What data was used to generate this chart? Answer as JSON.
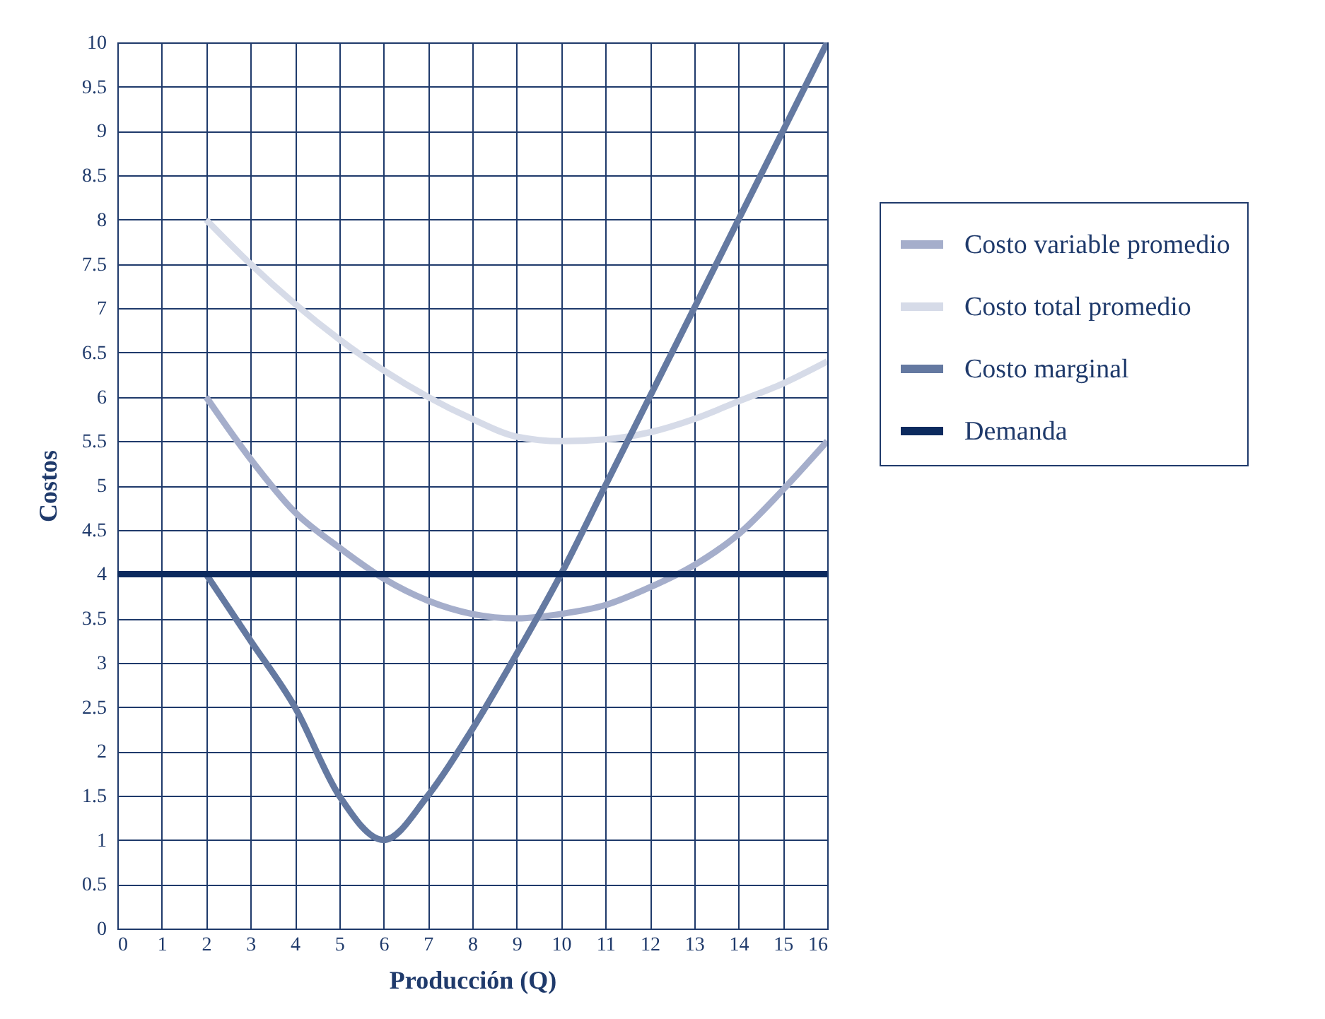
{
  "chart_data": {
    "type": "line",
    "xlabel": "Producción (Q)",
    "ylabel": "Costos",
    "xlim": [
      0,
      16
    ],
    "xticks": [
      0,
      1,
      2,
      3,
      4,
      5,
      6,
      7,
      8,
      9,
      10,
      11,
      12,
      13,
      14,
      15,
      16
    ],
    "ylim": [
      0,
      10
    ],
    "yticks": [
      0,
      0.5,
      1,
      1.5,
      2,
      2.5,
      3,
      3.5,
      4,
      4.5,
      5,
      5.5,
      6,
      6.5,
      7,
      7.5,
      8,
      8.5,
      9,
      9.5,
      10
    ],
    "grid": true,
    "legend": "right",
    "series": [
      {
        "name": "Costo variable promedio",
        "color": "#a5aecb",
        "x": [
          2,
          3,
          4,
          5,
          6,
          7,
          8,
          9,
          10,
          11,
          12,
          13,
          14,
          15,
          16
        ],
        "values": [
          6,
          5.3,
          4.7,
          4.3,
          3.95,
          3.7,
          3.55,
          3.5,
          3.55,
          3.65,
          3.85,
          4.1,
          4.45,
          4.95,
          5.5
        ]
      },
      {
        "name": "Costo total promedio",
        "color": "#d6dbe8",
        "x": [
          2,
          3,
          4,
          5,
          6,
          7,
          8,
          9,
          10,
          11,
          12,
          13,
          14,
          15,
          16
        ],
        "values": [
          8,
          7.5,
          7.05,
          6.65,
          6.3,
          6,
          5.75,
          5.55,
          5.5,
          5.52,
          5.6,
          5.75,
          5.95,
          6.15,
          6.4
        ]
      },
      {
        "name": "Costo marginal",
        "color": "#6479a1",
        "x": [
          2,
          3,
          4,
          5,
          6,
          7,
          8,
          9,
          10,
          11,
          12,
          13,
          14,
          15,
          16
        ],
        "values": [
          4,
          3.25,
          2.5,
          1.5,
          1,
          1.5,
          2.25,
          3.1,
          4,
          5,
          6,
          7,
          8,
          9,
          10
        ]
      },
      {
        "name": "Demanda",
        "color": "#0c2a5e",
        "x": [
          0,
          16
        ],
        "values": [
          4,
          4
        ]
      }
    ]
  }
}
